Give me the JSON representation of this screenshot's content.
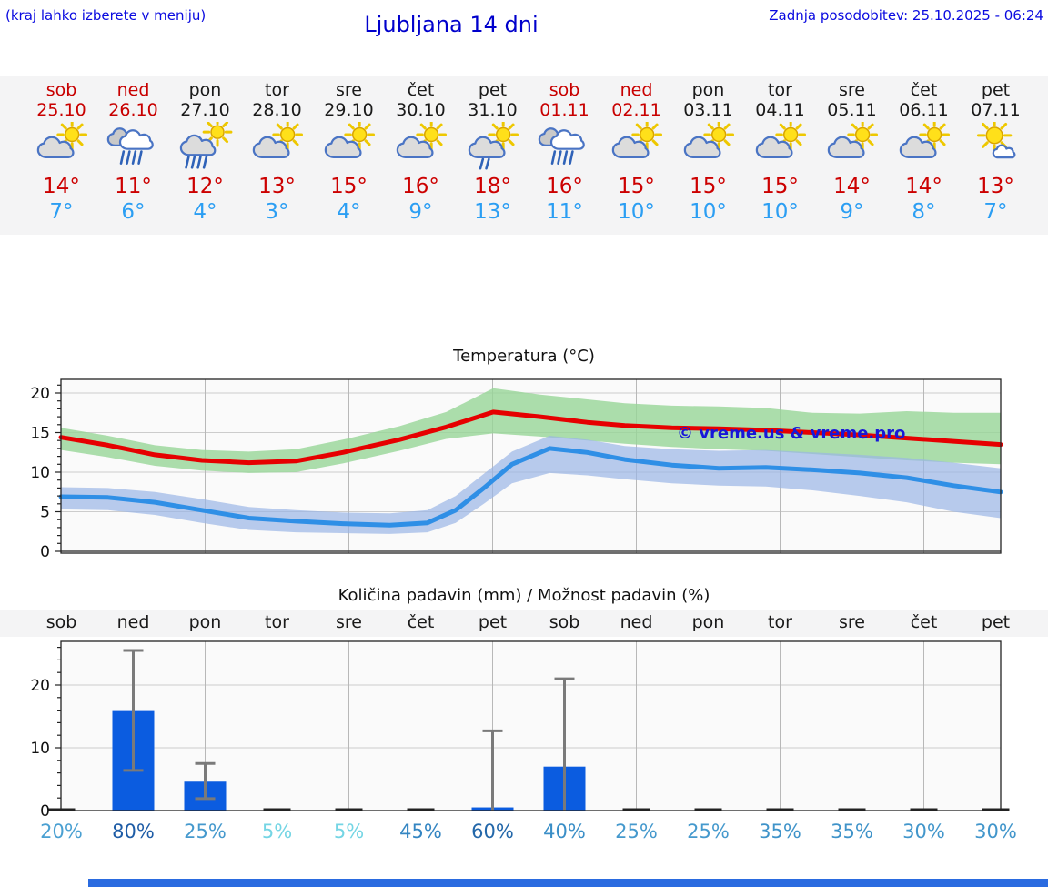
{
  "header": {
    "hint": "(kraj lahko izberete v meniju)",
    "title": "Ljubljana 14 dni",
    "updated": "Zadnja posodobitev: 25.10.2025 - 06:24"
  },
  "watermark": "© vreme.us & vreme.pro",
  "colors": {
    "header_blue": "#0000cc",
    "weekend_red": "#c80000",
    "high_temp_red": "#cc0000",
    "low_temp_blue": "#2b9ef3",
    "strip_bg": "#f4f4f5",
    "max_line": "#e60000",
    "min_line": "#2f8fe6",
    "max_band": "#97d697",
    "min_band": "#9ab5e6",
    "bar_blue": "#0b5ce0",
    "bottom_bar_blue": "#2a6be0"
  },
  "days": [
    {
      "name": "sob",
      "date": "25.10",
      "weekend": true,
      "icon": "partly-cloudy",
      "high": "14°",
      "low": "7°",
      "pop": "20%",
      "pop_color": "#4aa0d2"
    },
    {
      "name": "ned",
      "date": "26.10",
      "weekend": true,
      "icon": "rain",
      "high": "11°",
      "low": "6°",
      "pop": "80%",
      "pop_color": "#1e5ca6"
    },
    {
      "name": "pon",
      "date": "27.10",
      "weekend": false,
      "icon": "rain-sun",
      "high": "12°",
      "low": "4°",
      "pop": "25%",
      "pop_color": "#4599cd"
    },
    {
      "name": "tor",
      "date": "28.10",
      "weekend": false,
      "icon": "partly-cloudy",
      "high": "13°",
      "low": "3°",
      "pop": "5%",
      "pop_color": "#74d5e4"
    },
    {
      "name": "sre",
      "date": "29.10",
      "weekend": false,
      "icon": "partly-cloudy",
      "high": "15°",
      "low": "4°",
      "pop": "5%",
      "pop_color": "#74d5e4"
    },
    {
      "name": "čet",
      "date": "30.10",
      "weekend": false,
      "icon": "partly-cloudy",
      "high": "16°",
      "low": "9°",
      "pop": "45%",
      "pop_color": "#3385c2"
    },
    {
      "name": "pet",
      "date": "31.10",
      "weekend": false,
      "icon": "light-rain-sun",
      "high": "18°",
      "low": "13°",
      "pop": "60%",
      "pop_color": "#2367a9"
    },
    {
      "name": "sob",
      "date": "01.11",
      "weekend": true,
      "icon": "rain",
      "high": "16°",
      "low": "11°",
      "pop": "40%",
      "pop_color": "#3a8ec7"
    },
    {
      "name": "ned",
      "date": "02.11",
      "weekend": true,
      "icon": "partly-cloudy",
      "high": "15°",
      "low": "10°",
      "pop": "25%",
      "pop_color": "#4599cd"
    },
    {
      "name": "pon",
      "date": "03.11",
      "weekend": false,
      "icon": "partly-cloudy",
      "high": "15°",
      "low": "10°",
      "pop": "25%",
      "pop_color": "#4599cd"
    },
    {
      "name": "tor",
      "date": "04.11",
      "weekend": false,
      "icon": "partly-cloudy",
      "high": "15°",
      "low": "10°",
      "pop": "35%",
      "pop_color": "#3f93c9"
    },
    {
      "name": "sre",
      "date": "05.11",
      "weekend": false,
      "icon": "partly-cloudy",
      "high": "14°",
      "low": "9°",
      "pop": "35%",
      "pop_color": "#3f93c9"
    },
    {
      "name": "čet",
      "date": "06.11",
      "weekend": false,
      "icon": "partly-cloudy",
      "high": "14°",
      "low": "8°",
      "pop": "30%",
      "pop_color": "#4296cb"
    },
    {
      "name": "pet",
      "date": "07.11",
      "weekend": false,
      "icon": "mostly-sunny",
      "high": "13°",
      "low": "7°",
      "pop": "30%",
      "pop_color": "#4296cb"
    }
  ],
  "chart_data": [
    {
      "type": "line",
      "title": "Temperatura (°C)",
      "categories": [
        "sob",
        "ned",
        "pon",
        "tor",
        "sre",
        "čet",
        "pet",
        "sob",
        "ned",
        "pon",
        "tor",
        "sre",
        "čet",
        "pet"
      ],
      "series": [
        {
          "name": "max temperatura",
          "color": "#e60000",
          "values": [
            14,
            11,
            12,
            13,
            15,
            16,
            18,
            16,
            15,
            15,
            15,
            14,
            14,
            13
          ]
        },
        {
          "name": "min temperatura",
          "color": "#2f8fe6",
          "values": [
            7,
            6,
            4,
            3,
            4,
            9,
            13,
            11,
            10,
            10,
            10,
            9,
            8,
            7
          ]
        }
      ],
      "ylim": [
        -0.3,
        21.7
      ],
      "yticks": [
        0,
        5,
        10,
        15,
        20
      ],
      "grid": true,
      "legend": "none",
      "grid_vertical_day_idx": [
        2,
        4,
        6,
        8,
        10,
        12
      ],
      "band_max_color": "#97d697",
      "band_min_color": "#9ab5e6",
      "curve_max": [
        [
          0,
          14.4
        ],
        [
          0.05,
          13.4
        ],
        [
          0.1,
          12.2
        ],
        [
          0.15,
          11.5
        ],
        [
          0.2,
          11.2
        ],
        [
          0.25,
          11.4
        ],
        [
          0.3,
          12.5
        ],
        [
          0.36,
          14.1
        ],
        [
          0.41,
          15.7
        ],
        [
          0.46,
          17.6
        ],
        [
          0.51,
          17.0
        ],
        [
          0.56,
          16.3
        ],
        [
          0.6,
          15.9
        ],
        [
          0.65,
          15.6
        ],
        [
          0.7,
          15.5
        ],
        [
          0.75,
          15.3
        ],
        [
          0.8,
          15.0
        ],
        [
          0.85,
          14.7
        ],
        [
          0.9,
          14.3
        ],
        [
          0.95,
          13.9
        ],
        [
          1,
          13.5
        ]
      ],
      "curve_min": [
        [
          0,
          6.9
        ],
        [
          0.05,
          6.8
        ],
        [
          0.1,
          6.2
        ],
        [
          0.15,
          5.2
        ],
        [
          0.2,
          4.2
        ],
        [
          0.25,
          3.8
        ],
        [
          0.3,
          3.5
        ],
        [
          0.35,
          3.3
        ],
        [
          0.39,
          3.6
        ],
        [
          0.42,
          5.2
        ],
        [
          0.45,
          8.0
        ],
        [
          0.48,
          11.0
        ],
        [
          0.52,
          13.0
        ],
        [
          0.56,
          12.5
        ],
        [
          0.6,
          11.6
        ],
        [
          0.65,
          10.9
        ],
        [
          0.7,
          10.5
        ],
        [
          0.75,
          10.6
        ],
        [
          0.8,
          10.3
        ],
        [
          0.85,
          9.9
        ],
        [
          0.9,
          9.3
        ],
        [
          0.95,
          8.3
        ],
        [
          1,
          7.5
        ]
      ],
      "band_max": [
        [
          0,
          15.6,
          12.8
        ],
        [
          0.05,
          14.6,
          11.9
        ],
        [
          0.1,
          13.4,
          10.8
        ],
        [
          0.15,
          12.8,
          10.2
        ],
        [
          0.2,
          12.6,
          9.9
        ],
        [
          0.25,
          12.9,
          10.0
        ],
        [
          0.3,
          14.1,
          11.1
        ],
        [
          0.36,
          15.8,
          12.7
        ],
        [
          0.41,
          17.6,
          14.2
        ],
        [
          0.46,
          20.6,
          14.9
        ],
        [
          0.51,
          19.8,
          14.5
        ],
        [
          0.56,
          19.2,
          14.0
        ],
        [
          0.6,
          18.7,
          13.6
        ],
        [
          0.65,
          18.4,
          13.2
        ],
        [
          0.7,
          18.3,
          12.9
        ],
        [
          0.75,
          18.1,
          12.7
        ],
        [
          0.8,
          17.5,
          12.3
        ],
        [
          0.85,
          17.4,
          11.9
        ],
        [
          0.9,
          17.7,
          11.5
        ],
        [
          0.95,
          17.5,
          11.2
        ],
        [
          1,
          17.5,
          11.0
        ]
      ],
      "band_min": [
        [
          0,
          8.1,
          5.3
        ],
        [
          0.05,
          8.0,
          5.2
        ],
        [
          0.1,
          7.5,
          4.6
        ],
        [
          0.15,
          6.6,
          3.6
        ],
        [
          0.2,
          5.6,
          2.7
        ],
        [
          0.25,
          5.2,
          2.4
        ],
        [
          0.3,
          4.9,
          2.3
        ],
        [
          0.35,
          4.8,
          2.2
        ],
        [
          0.39,
          5.2,
          2.4
        ],
        [
          0.42,
          7.0,
          3.6
        ],
        [
          0.45,
          9.8,
          6.0
        ],
        [
          0.48,
          12.6,
          8.6
        ],
        [
          0.52,
          14.6,
          9.9
        ],
        [
          0.56,
          14.1,
          9.6
        ],
        [
          0.6,
          13.3,
          9.1
        ],
        [
          0.65,
          12.9,
          8.6
        ],
        [
          0.7,
          12.7,
          8.3
        ],
        [
          0.75,
          12.8,
          8.2
        ],
        [
          0.8,
          12.5,
          7.7
        ],
        [
          0.85,
          12.2,
          7.0
        ],
        [
          0.9,
          11.8,
          6.2
        ],
        [
          0.95,
          11.2,
          5.0
        ],
        [
          1,
          10.5,
          4.2
        ]
      ]
    },
    {
      "type": "bar",
      "title": "Količina padavin (mm) / Možnost padavin (%)",
      "categories": [
        "sob",
        "ned",
        "pon",
        "tor",
        "sre",
        "čet",
        "pet",
        "sob",
        "ned",
        "pon",
        "tor",
        "sre",
        "čet",
        "pet"
      ],
      "values": [
        0,
        16,
        4.6,
        0,
        0,
        0,
        0.5,
        7,
        0,
        0,
        0,
        0,
        0,
        0
      ],
      "err_low": [
        null,
        6.4,
        1.9,
        null,
        null,
        null,
        0,
        0,
        null,
        null,
        null,
        null,
        null,
        null
      ],
      "err_high": [
        null,
        25.5,
        7.5,
        null,
        null,
        null,
        12.7,
        21,
        null,
        null,
        null,
        null,
        null,
        null
      ],
      "percent": [
        20,
        80,
        25,
        5,
        5,
        45,
        60,
        40,
        25,
        25,
        35,
        35,
        30,
        30
      ],
      "ylim": [
        0,
        27
      ],
      "yticks": [
        0,
        10,
        20
      ],
      "grid": true,
      "bar_color": "#0b5ce0",
      "error_color": "#7a7a7a",
      "grid_vertical_day_idx": [
        2,
        4,
        6,
        8,
        10,
        12
      ]
    }
  ]
}
